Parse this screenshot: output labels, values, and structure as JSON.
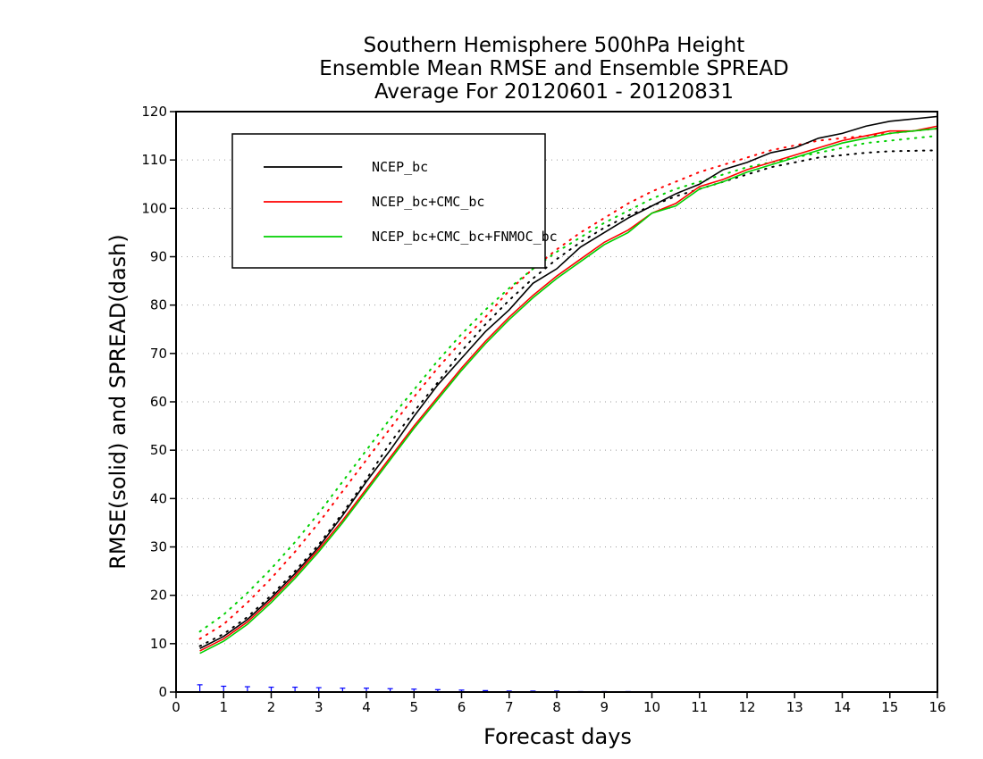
{
  "chart_data": {
    "type": "line",
    "title": [
      "Southern Hemisphere 500hPa Height",
      "Ensemble Mean RMSE and Ensemble SPREAD",
      "Average For 20120601 - 20120831"
    ],
    "xlabel": "Forecast days",
    "ylabel": "RMSE(solid) and SPREAD(dash)",
    "xlim": [
      0,
      16
    ],
    "ylim": [
      0,
      120
    ],
    "xticks": [
      "0",
      "1",
      "2",
      "3",
      "4",
      "5",
      "6",
      "7",
      "8",
      "9",
      "10",
      "11",
      "12",
      "13",
      "14",
      "15",
      "16"
    ],
    "yticks": [
      "0",
      "10",
      "20",
      "30",
      "40",
      "50",
      "60",
      "70",
      "80",
      "90",
      "100",
      "110",
      "120"
    ],
    "grid": "horizontal dotted",
    "legend_position": "top-left",
    "x": [
      0.5,
      1,
      1.5,
      2,
      2.5,
      3,
      3.5,
      4,
      4.5,
      5,
      5.5,
      6,
      6.5,
      7,
      7.5,
      8,
      8.5,
      9,
      9.5,
      10,
      10.5,
      11,
      11.5,
      12,
      12.5,
      13,
      13.5,
      14,
      14.5,
      15,
      15.5,
      16
    ],
    "series": [
      {
        "name": "NCEP_bc",
        "color": "#000000",
        "rmse": [
          9,
          11.5,
          15,
          19.5,
          24.5,
          30,
          36.5,
          43.5,
          50,
          57,
          63.5,
          69,
          74.5,
          79,
          84.5,
          87.5,
          92,
          95,
          98,
          100.5,
          103,
          105,
          108,
          109.5,
          111.5,
          112.5,
          114.5,
          115.5,
          117,
          118,
          118.5,
          119
        ],
        "spread": [
          9.5,
          12,
          15.5,
          20,
          25,
          30.5,
          37,
          44,
          51.5,
          58,
          64,
          70.5,
          76,
          81,
          85.5,
          89.5,
          93,
          96,
          98.5,
          100.5,
          102.5,
          104,
          105.5,
          107,
          108.5,
          109.5,
          110.5,
          111,
          111.5,
          111.8,
          111.9,
          112
        ]
      },
      {
        "name": "NCEP_bc+CMC_bc",
        "color": "#ff0000",
        "rmse": [
          8.5,
          11,
          14.5,
          19,
          24,
          29.5,
          35.5,
          42,
          48.5,
          55,
          61,
          67,
          72.5,
          77.5,
          82,
          86,
          89.5,
          93,
          95.5,
          99,
          101,
          104.5,
          106,
          108,
          109.5,
          111,
          112.5,
          114,
          115,
          116,
          116,
          117
        ],
        "spread": [
          11,
          14,
          18.5,
          23.5,
          29,
          35,
          41.5,
          48,
          54.5,
          61,
          67,
          72.5,
          77.5,
          83,
          87.5,
          91.5,
          95,
          98,
          101,
          103.5,
          105.5,
          107.5,
          109,
          110.5,
          112,
          113,
          114,
          114.5,
          115,
          115.5,
          116,
          116.5
        ]
      },
      {
        "name": "NCEP_bc+CMC_bc+FNMOC_bc",
        "color": "#00d000",
        "rmse": [
          8,
          10.5,
          14,
          18.5,
          23.5,
          29,
          35,
          41.5,
          48,
          54.5,
          60.5,
          66.5,
          72,
          77,
          81.5,
          85.5,
          89,
          92.5,
          95,
          99,
          100.5,
          104,
          105.5,
          107.5,
          109,
          110.5,
          112,
          113.5,
          114.5,
          115.5,
          116,
          116.5
        ],
        "spread": [
          12.5,
          16,
          20.5,
          25.5,
          31,
          37,
          43.5,
          50,
          56.5,
          62.5,
          68.5,
          74,
          79,
          83.5,
          87.5,
          91,
          94,
          97,
          99.5,
          102,
          104,
          105.5,
          107,
          108.5,
          109.5,
          110.5,
          111.5,
          112.5,
          113.5,
          114,
          114.5,
          115
        ]
      }
    ],
    "difference_bars": {
      "color": "#0000ff",
      "values": [
        1.5,
        1.2,
        1.1,
        1,
        1,
        0.9,
        0.8,
        0.8,
        0.7,
        0.6,
        0.5,
        0.4,
        0.3,
        0.2,
        0.2,
        0.2,
        0.1,
        0.1,
        0.1,
        0,
        0,
        0,
        0,
        0,
        0,
        0,
        0,
        0,
        0,
        0,
        0,
        0
      ]
    }
  }
}
